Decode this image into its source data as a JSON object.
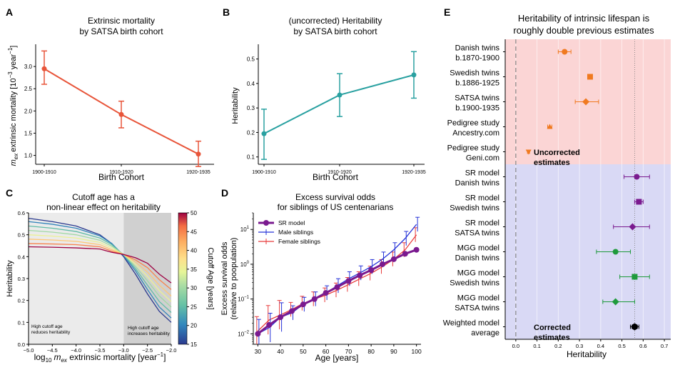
{
  "colors": {
    "red": "#e8553a",
    "teal": "#2aa1a1",
    "purple": "#7a1a8f",
    "blue": "#2633d8",
    "lightred": "#e83c3c",
    "orange": "#f07a20",
    "green": "#1f9a3c",
    "pink_bg": "#fbd5d5",
    "blue_bg": "#d9d9f5"
  },
  "panel_letters": {
    "a": "A",
    "b": "B",
    "c": "C",
    "d": "D",
    "e": "E"
  },
  "chart_data": [
    {
      "panel": "A",
      "type": "line",
      "title_line1": "Extrinsic mortality",
      "title_line2": "by SATSA birth cohort",
      "xlabel": "Birth Cohort",
      "ylabel": "m_ex extrinsic mortality [10^-3 year^-1]",
      "ylabel_main": "extrinsic mortality [10",
      "ylabel_exp": "−3",
      "ylabel_unit": " year",
      "ylabel_unit_exp": "−1",
      "ylabel_close": "]",
      "ylabel_sym": "m",
      "ylabel_sub": "ex",
      "categories": [
        "1900-1910",
        "1910-1920",
        "1920-1935"
      ],
      "values": [
        2.95,
        1.92,
        1.03
      ],
      "err_low": [
        2.6,
        1.62,
        0.75
      ],
      "err_high": [
        3.35,
        2.22,
        1.32
      ],
      "ylim": [
        0.8,
        3.5
      ],
      "yticks": [
        "1.0",
        "1.5",
        "2.0",
        "2.5",
        "3.0"
      ]
    },
    {
      "panel": "B",
      "type": "line",
      "title_line1": "(uncorrected) Heritability",
      "title_line2": "by SATSA birth cohort",
      "xlabel": "Birth Cohort",
      "ylabel": "Heritability",
      "categories": [
        "1900-1910",
        "1910-1920",
        "1920-1935"
      ],
      "values": [
        0.195,
        0.353,
        0.435
      ],
      "err_low": [
        0.09,
        0.265,
        0.34
      ],
      "err_high": [
        0.295,
        0.44,
        0.53
      ],
      "ylim": [
        0.07,
        0.56
      ],
      "yticks": [
        "0.1",
        "0.2",
        "0.3",
        "0.4",
        "0.5"
      ]
    },
    {
      "panel": "C",
      "type": "line",
      "title_line1": "Cutoff age has a",
      "title_line2": "non-linear effect on heritability",
      "xlabel": "log10 m_ex extrinsic mortality [year^-1]",
      "xlabel_pre": "log",
      "xlabel_sub10": "10",
      "xlabel_sym": "m",
      "xlabel_sub": "ex",
      "xlabel_rest": " extrinsic mortality [year",
      "xlabel_exp": "−1",
      "xlabel_close": "]",
      "ylabel": "Heritability",
      "xlim": [
        -5.0,
        -2.0
      ],
      "ylim": [
        0.0,
        0.6
      ],
      "xticks": [
        "−5.0",
        "−4.5",
        "−4.0",
        "−3.5",
        "−3.0",
        "−2.5",
        "−2.0"
      ],
      "yticks": [
        "0.0",
        "0.1",
        "0.2",
        "0.3",
        "0.4",
        "0.5",
        "0.6"
      ],
      "colorbar_label": "Cutoff Age [years]",
      "colorbar_ticks": [
        "15",
        "20",
        "25",
        "30",
        "35",
        "40",
        "45",
        "50"
      ],
      "colorbar_range": [
        15,
        50
      ],
      "annotation_left_1": "High cutoff age",
      "annotation_left_2": "reduces heritability",
      "annotation_right_1": "High cutoff age",
      "annotation_right_2": "increases heritability",
      "shaded_left": [
        -5.0,
        -3.0
      ],
      "shaded_right": [
        -3.0,
        -2.0
      ],
      "x": [
        -5.0,
        -4.5,
        -4.0,
        -3.5,
        -3.25,
        -3.0,
        -2.75,
        -2.5,
        -2.25,
        -2.0
      ],
      "series": [
        {
          "name": "15",
          "values": [
            0.575,
            0.56,
            0.54,
            0.5,
            0.46,
            0.4,
            0.32,
            0.23,
            0.15,
            0.1
          ]
        },
        {
          "name": "20",
          "values": [
            0.56,
            0.548,
            0.53,
            0.495,
            0.46,
            0.405,
            0.335,
            0.25,
            0.17,
            0.12
          ]
        },
        {
          "name": "25",
          "values": [
            0.54,
            0.53,
            0.515,
            0.485,
            0.455,
            0.408,
            0.345,
            0.27,
            0.195,
            0.145
          ]
        },
        {
          "name": "30",
          "values": [
            0.52,
            0.512,
            0.5,
            0.475,
            0.448,
            0.41,
            0.355,
            0.29,
            0.22,
            0.17
          ]
        },
        {
          "name": "35",
          "values": [
            0.5,
            0.494,
            0.485,
            0.465,
            0.44,
            0.41,
            0.365,
            0.31,
            0.245,
            0.195
          ]
        },
        {
          "name": "40",
          "values": [
            0.48,
            0.476,
            0.47,
            0.455,
            0.432,
            0.41,
            0.375,
            0.33,
            0.27,
            0.22
          ]
        },
        {
          "name": "45",
          "values": [
            0.46,
            0.458,
            0.455,
            0.445,
            0.425,
            0.41,
            0.385,
            0.35,
            0.295,
            0.25
          ]
        },
        {
          "name": "50",
          "values": [
            0.445,
            0.443,
            0.44,
            0.435,
            0.42,
            0.41,
            0.395,
            0.37,
            0.32,
            0.28
          ]
        }
      ]
    },
    {
      "panel": "D",
      "type": "line",
      "title_line1": "Excess survival odds",
      "title_line2": "for siblings of US centenarians",
      "xlabel": "Age [years]",
      "ylabel_line1": "Excess survival odds",
      "ylabel_line2": "(relative to poopulation)",
      "yscale": "log",
      "xlim": [
        28,
        102
      ],
      "ylim": [
        0.005,
        30
      ],
      "xticks": [
        "30",
        "40",
        "50",
        "60",
        "70",
        "80",
        "90",
        "100"
      ],
      "ytick_exps": [
        "−2",
        "−1",
        "0",
        "1"
      ],
      "ytick_base": "10",
      "x": [
        30,
        35,
        40,
        45,
        50,
        55,
        60,
        65,
        70,
        75,
        80,
        85,
        90,
        95,
        100
      ],
      "series": [
        {
          "name": "SR model",
          "values": [
            0.01,
            0.018,
            0.03,
            0.045,
            0.07,
            0.1,
            0.15,
            0.22,
            0.33,
            0.48,
            0.68,
            1.0,
            1.4,
            2.0,
            2.6
          ]
        },
        {
          "name": "Male siblings",
          "values": [
            0.01,
            0.015,
            0.03,
            0.04,
            0.07,
            0.1,
            0.15,
            0.24,
            0.38,
            0.56,
            0.85,
            1.4,
            2.6,
            5.5,
            14.0
          ]
        },
        {
          "name": "Female siblings",
          "values": [
            0.012,
            0.025,
            0.035,
            0.05,
            0.075,
            0.1,
            0.13,
            0.18,
            0.26,
            0.38,
            0.55,
            0.85,
            1.4,
            2.6,
            7.0
          ]
        }
      ],
      "legend": [
        "SR model",
        "Male siblings",
        "Female siblings"
      ]
    },
    {
      "panel": "E",
      "type": "scatter",
      "title_line1": "Heritability of intrinsic lifespan is",
      "title_line2": "roughly double previous estimates",
      "xlabel": "Heritability",
      "xlim": [
        -0.05,
        0.73
      ],
      "xticks": [
        "0.0",
        "0.1",
        "0.2",
        "0.3",
        "0.4",
        "0.5",
        "0.6",
        "0.7"
      ],
      "reference_line": 0.56,
      "annotation_uncorrected_1": "Uncorrected",
      "annotation_uncorrected_2": "estimates",
      "annotation_corrected_1": "Corrected",
      "annotation_corrected_2": "estimates",
      "rows": [
        {
          "label1": "Danish twins",
          "label2": "b.1870-1900",
          "value": 0.23,
          "low": 0.2,
          "high": 0.26,
          "marker": "circle",
          "group": "uncorrected"
        },
        {
          "label1": "Swedish twins",
          "label2": "b.1886-1925",
          "value": 0.35,
          "low": 0.34,
          "high": 0.36,
          "marker": "square",
          "group": "uncorrected"
        },
        {
          "label1": "SATSA twins",
          "label2": "b.1900-1935",
          "value": 0.33,
          "low": 0.28,
          "high": 0.39,
          "marker": "diamond",
          "group": "uncorrected"
        },
        {
          "label1": "Pedigree study",
          "label2": "Ancestry.com",
          "value": 0.16,
          "low": 0.15,
          "high": 0.17,
          "marker": "triangle",
          "group": "uncorrected"
        },
        {
          "label1": "Pedigree study",
          "label2": "Geni.com",
          "value": 0.06,
          "low": 0.055,
          "high": 0.065,
          "marker": "triangle-down",
          "group": "uncorrected"
        },
        {
          "label1": "SR model",
          "label2": "Danish twins",
          "value": 0.57,
          "low": 0.51,
          "high": 0.63,
          "marker": "circle",
          "group": "sr"
        },
        {
          "label1": "SR model",
          "label2": "Swedish twins",
          "value": 0.58,
          "low": 0.56,
          "high": 0.6,
          "marker": "square",
          "group": "sr"
        },
        {
          "label1": "SR model",
          "label2": "SATSA twins",
          "value": 0.55,
          "low": 0.46,
          "high": 0.63,
          "marker": "diamond",
          "group": "sr"
        },
        {
          "label1": "MGG model",
          "label2": "Danish twins",
          "value": 0.47,
          "low": 0.38,
          "high": 0.54,
          "marker": "circle",
          "group": "mgg"
        },
        {
          "label1": "MGG model",
          "label2": "Swedish twins",
          "value": 0.56,
          "low": 0.49,
          "high": 0.63,
          "marker": "square",
          "group": "mgg"
        },
        {
          "label1": "MGG model",
          "label2": "SATSA twins",
          "value": 0.47,
          "low": 0.41,
          "high": 0.56,
          "marker": "diamond",
          "group": "mgg"
        },
        {
          "label1": "Weighted model",
          "label2": "average",
          "value": 0.56,
          "low": 0.54,
          "high": 0.58,
          "marker": "hexagon",
          "group": "avg"
        }
      ]
    }
  ]
}
